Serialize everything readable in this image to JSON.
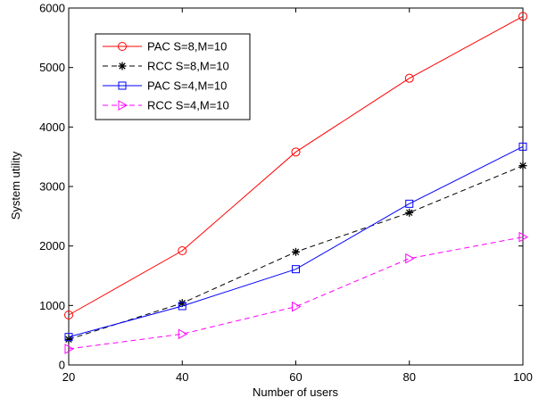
{
  "chart_data": {
    "type": "line",
    "xlabel": "Number of users",
    "ylabel": "System utility",
    "x": [
      20,
      40,
      60,
      80,
      100
    ],
    "xlim": [
      20,
      100
    ],
    "ylim": [
      0,
      6000
    ],
    "xticks": [
      "20",
      "40",
      "60",
      "80",
      "100"
    ],
    "yticks": [
      "0",
      "1000",
      "2000",
      "3000",
      "4000",
      "5000",
      "6000"
    ],
    "grid": false,
    "legend_position": "top-left",
    "series": [
      {
        "name": "PAC S=8,M=10",
        "values": [
          840,
          1920,
          3580,
          4820,
          5860
        ],
        "color": "#ff0000",
        "dash": "solid",
        "marker": "circle"
      },
      {
        "name": "RCC S=8,M=10",
        "values": [
          430,
          1040,
          1900,
          2560,
          3350
        ],
        "color": "#000000",
        "dash": "dashed",
        "marker": "star"
      },
      {
        "name": "PAC S=4,M=10",
        "values": [
          470,
          990,
          1610,
          2710,
          3670
        ],
        "color": "#0000ff",
        "dash": "solid",
        "marker": "square"
      },
      {
        "name": "RCC S=4,M=10",
        "values": [
          270,
          520,
          980,
          1790,
          2150
        ],
        "color": "#ff00ff",
        "dash": "dashed",
        "marker": "triangle-right"
      }
    ]
  }
}
